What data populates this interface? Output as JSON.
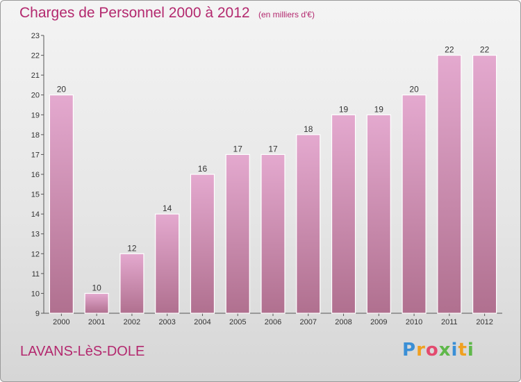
{
  "header": {
    "title": "Charges de Personnel 2000 à 2012",
    "subtitle": "(en milliers d'€)"
  },
  "footer": {
    "commune": "LAVANS-LèS-DOLE",
    "logo_letters": [
      "P",
      "r",
      "o",
      "x",
      "i",
      "t",
      "i"
    ],
    "logo_colors": [
      "#3a8fd6",
      "#f0a020",
      "#e34a6e",
      "#5fb84a",
      "#3a8fd6",
      "#f0a020",
      "#5fb84a"
    ]
  },
  "colors": {
    "bar_top": "#e4a9cf",
    "bar_bottom": "#b0708f",
    "title": "#b3286e"
  },
  "chart_data": {
    "type": "bar",
    "categories": [
      "2000",
      "2001",
      "2002",
      "2003",
      "2004",
      "2005",
      "2006",
      "2007",
      "2008",
      "2009",
      "2010",
      "2011",
      "2012"
    ],
    "values": [
      20,
      10,
      12,
      14,
      16,
      17,
      17,
      18,
      19,
      19,
      20,
      22,
      22
    ],
    "value_labels": [
      "20",
      "10",
      "12",
      "14",
      "16",
      "17",
      "17",
      "18",
      "19",
      "19",
      "20",
      "22",
      "22"
    ],
    "ylim": [
      9,
      23
    ],
    "yticks": [
      "9",
      "10",
      "11",
      "12",
      "13",
      "14",
      "15",
      "16",
      "17",
      "18",
      "19",
      "20",
      "21",
      "22",
      "23"
    ],
    "title": "Charges de Personnel 2000 à 2012",
    "xlabel": "",
    "ylabel": "",
    "grid": false,
    "legend": "none"
  }
}
